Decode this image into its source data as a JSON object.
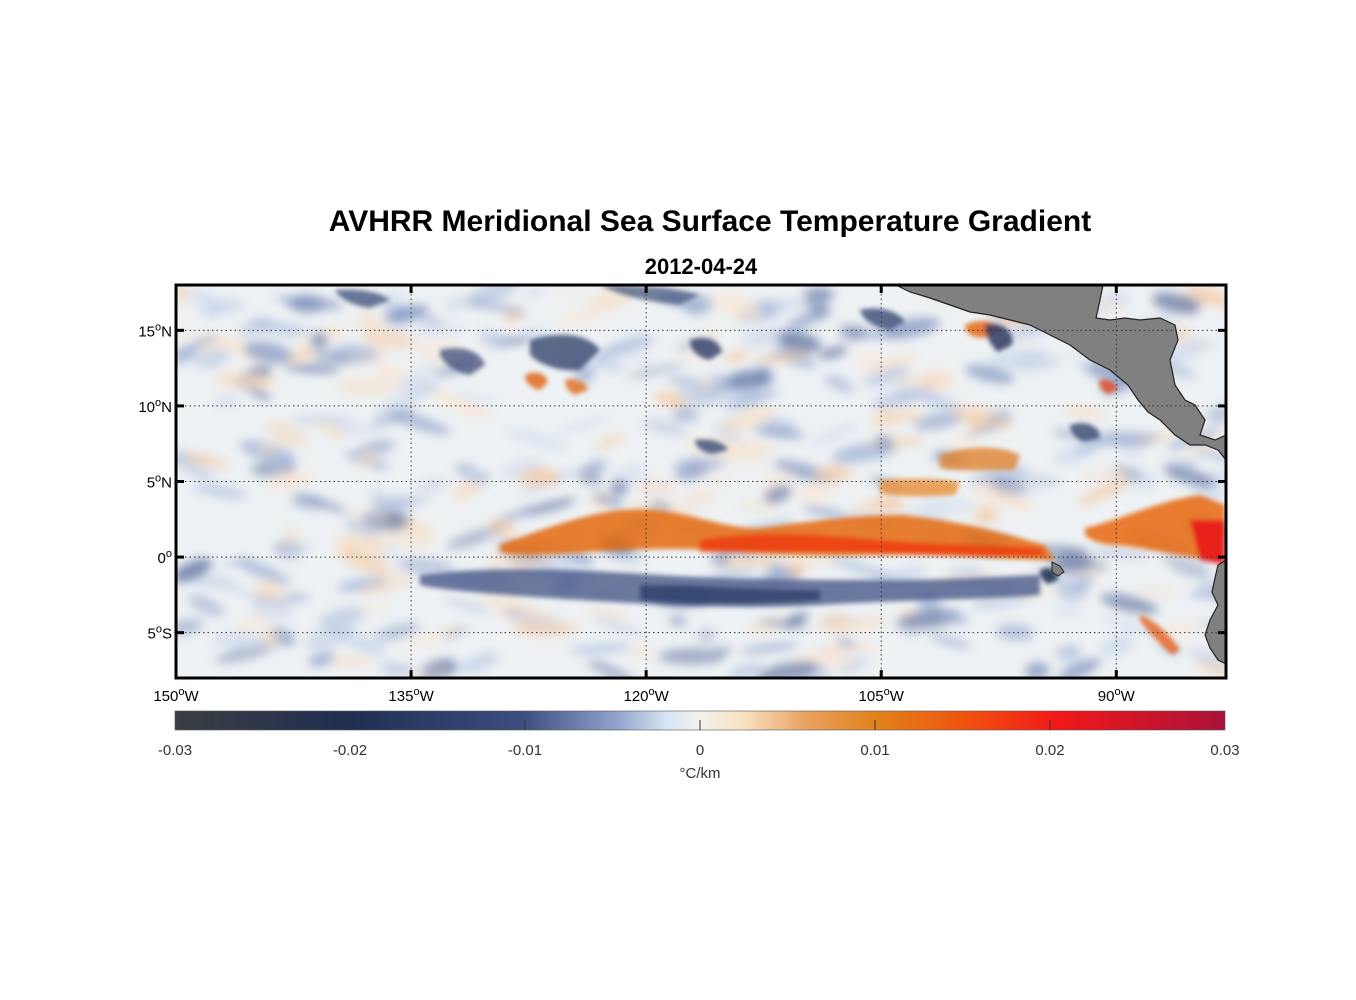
{
  "title": "AVHRR Meridional Sea Surface Temperature Gradient",
  "subtitle": "2012-04-24",
  "map": {
    "lon_range": [
      -150,
      -83
    ],
    "lat_range": [
      -8,
      18
    ],
    "lon_ticks": [
      {
        "value": -150,
        "deg": "150",
        "hem": "W"
      },
      {
        "value": -135,
        "deg": "135",
        "hem": "W"
      },
      {
        "value": -120,
        "deg": "120",
        "hem": "W"
      },
      {
        "value": -105,
        "deg": "105",
        "hem": "W"
      },
      {
        "value": -90,
        "deg": "90",
        "hem": "W"
      }
    ],
    "lat_ticks": [
      {
        "value": 15,
        "deg": "15",
        "hem": "N"
      },
      {
        "value": 10,
        "deg": "10",
        "hem": "N"
      },
      {
        "value": 5,
        "deg": "5",
        "hem": "N"
      },
      {
        "value": 0,
        "deg": "0",
        "hem": ""
      },
      {
        "value": -5,
        "deg": "5",
        "hem": "S"
      }
    ],
    "grid": "dotted",
    "land_color": "#808080"
  },
  "colorbar": {
    "min": -0.03,
    "max": 0.03,
    "ticks": [
      "-0.03",
      "-0.02",
      "-0.01",
      "0",
      "0.01",
      "0.02",
      "0.03"
    ],
    "tick_values": [
      -0.03,
      -0.02,
      -0.01,
      0,
      0.01,
      0.02,
      0.03
    ],
    "unit_label": "°C/km",
    "colors": [
      "#3a3d42",
      "#1f2f52",
      "#35467c",
      "#8395c0",
      "#dde9f6",
      "#f0f0ea",
      "#f8e0c0",
      "#e0861c",
      "#ee5a10",
      "#f21818",
      "#a8123a"
    ]
  }
}
